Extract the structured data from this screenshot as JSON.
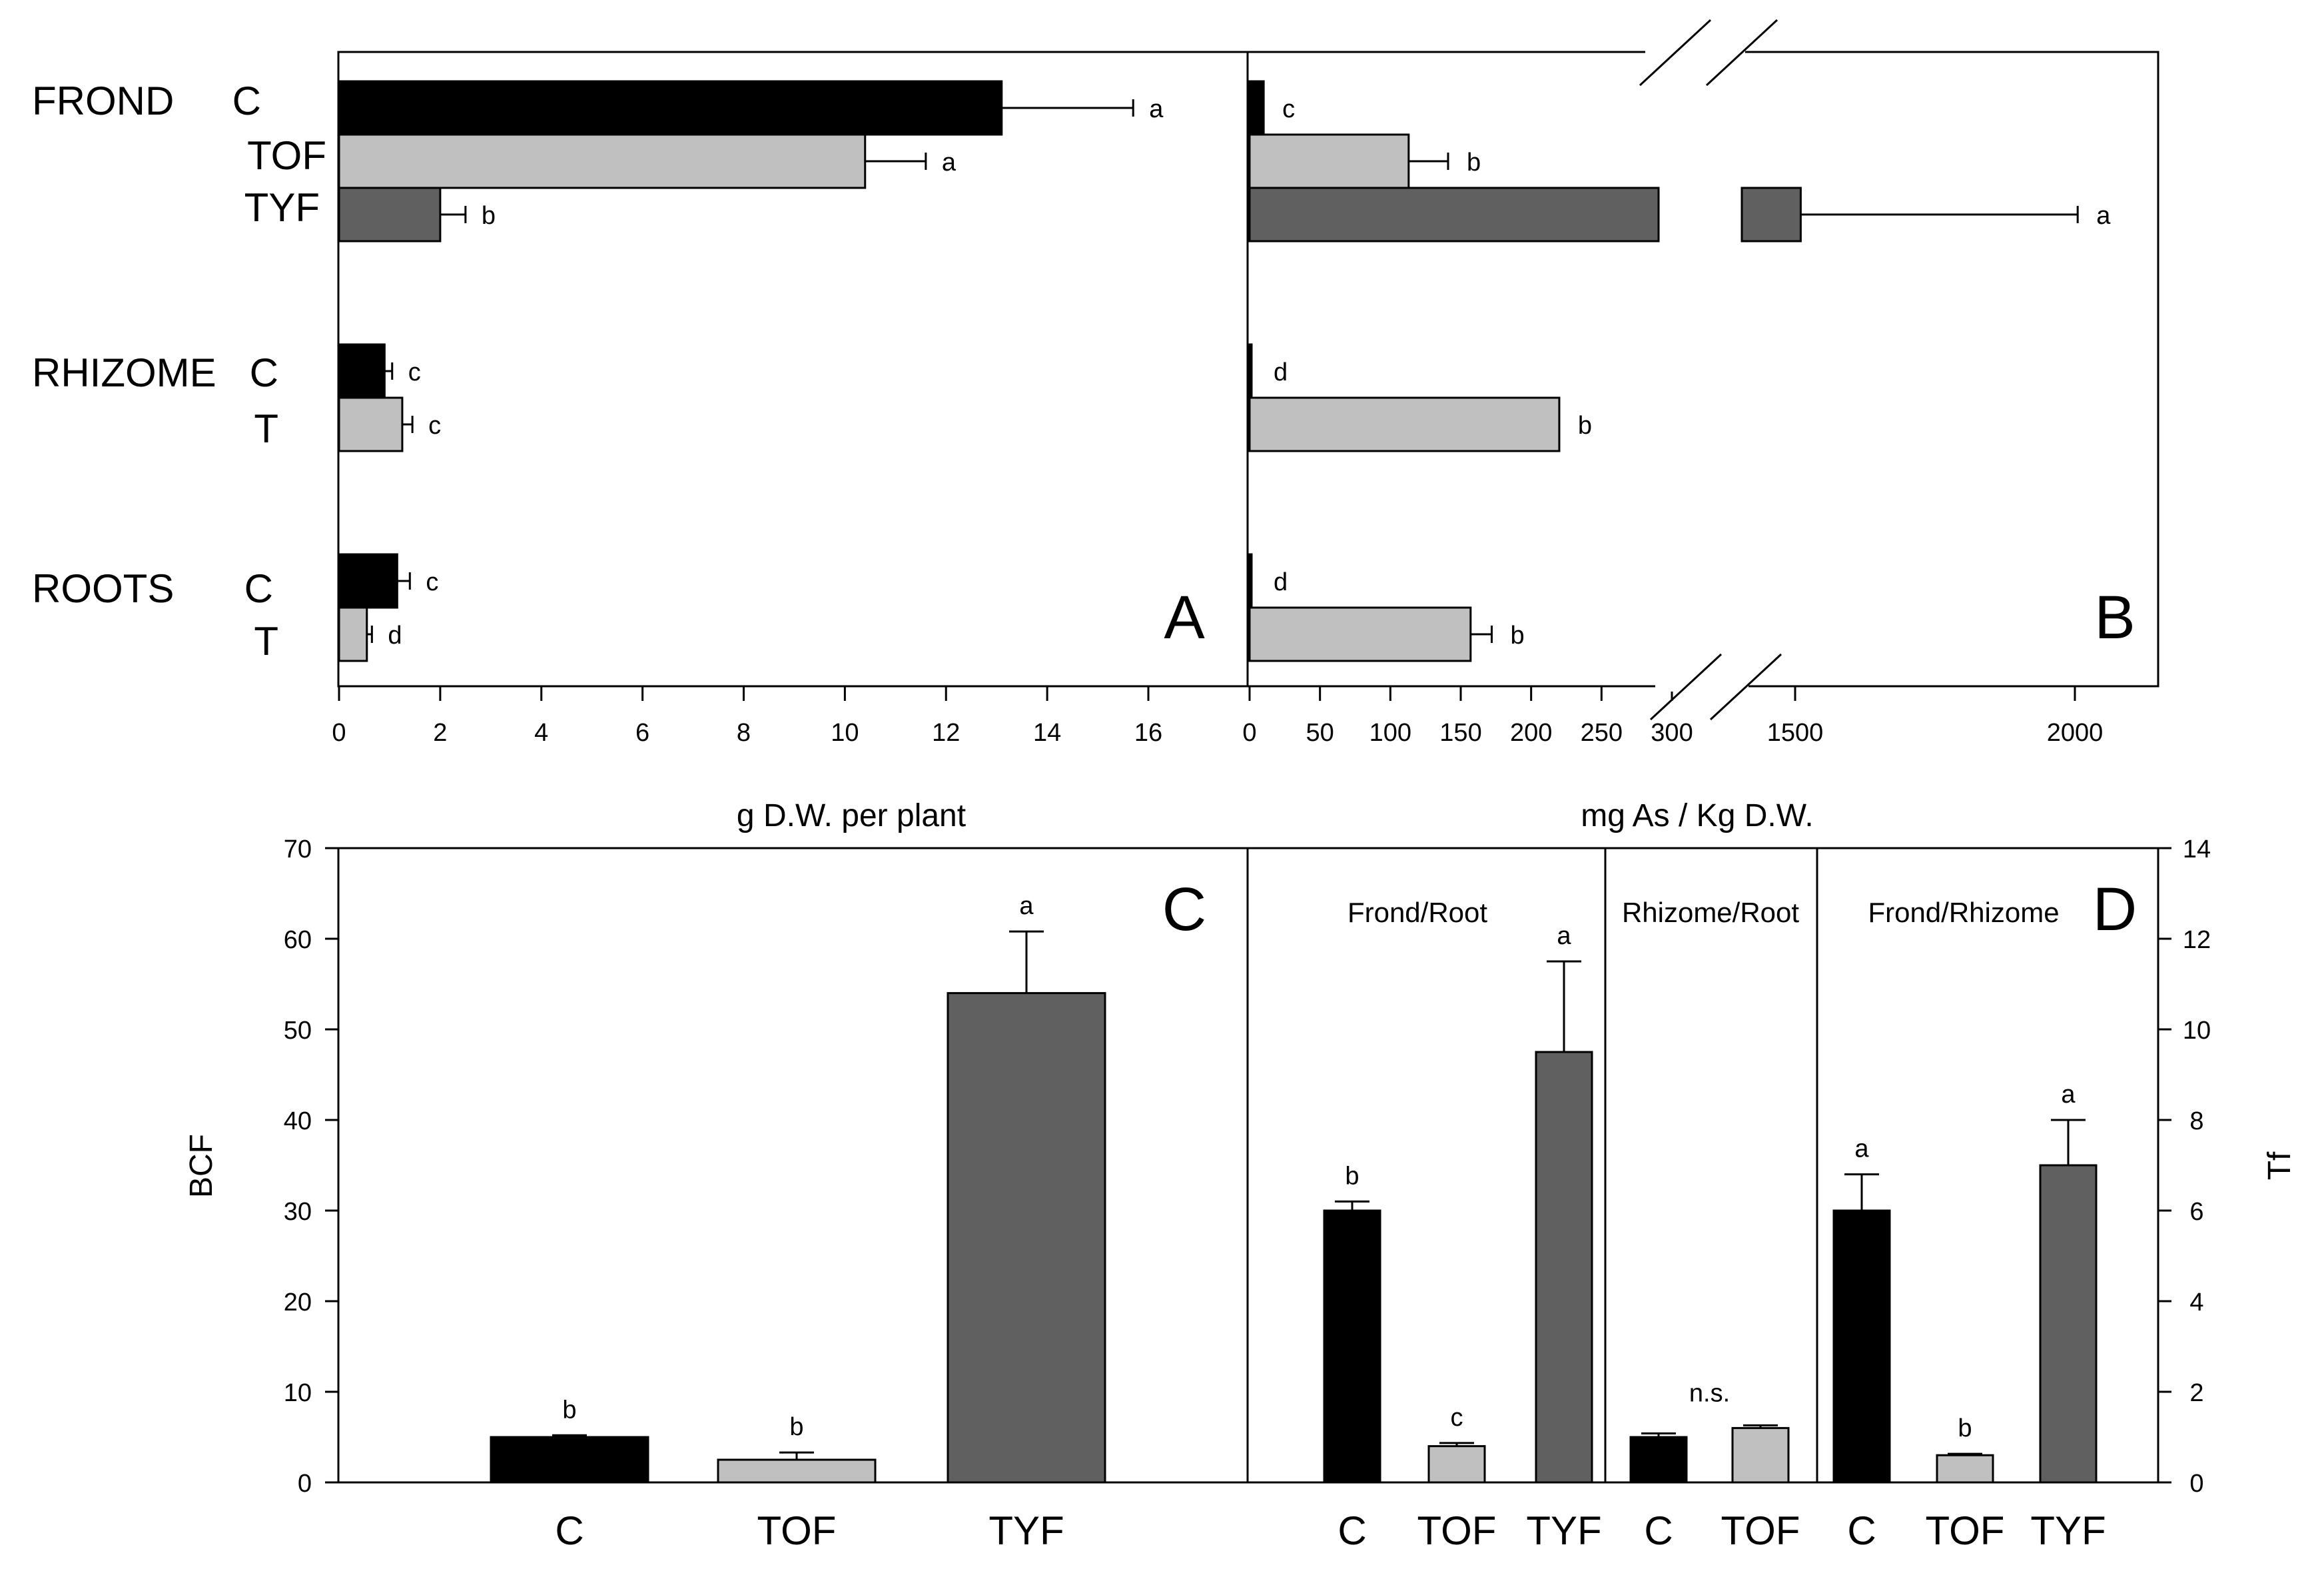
{
  "chart_data": [
    {
      "panel": "A",
      "type": "bar",
      "orientation": "horizontal",
      "xlabel": "g D.W. per plant",
      "xlim": [
        0,
        18
      ],
      "xticks": [
        "0",
        "2",
        "4",
        "6",
        "8",
        "10",
        "12",
        "14",
        "16"
      ],
      "bars": [
        {
          "group": "FROND",
          "group_label": "FROND",
          "treatment": "C",
          "value": 13.1,
          "error": 2.6,
          "sig": "a",
          "color": "#000000"
        },
        {
          "group": "FROND",
          "group_label": "",
          "treatment": "TOF",
          "value": 10.4,
          "error": 1.2,
          "sig": "a",
          "color": "#c0c0c0"
        },
        {
          "group": "FROND",
          "group_label": "",
          "treatment": "TYF",
          "value": 2.0,
          "error": 0.5,
          "sig": "b",
          "color": "#606060"
        },
        {
          "group": "RHIZOME",
          "group_label": "RHIZOME",
          "treatment": "C",
          "value": 0.9,
          "error": 0.15,
          "sig": "c",
          "color": "#000000"
        },
        {
          "group": "RHIZOME",
          "group_label": "",
          "treatment": "T",
          "value": 1.25,
          "error": 0.2,
          "sig": "c",
          "color": "#c0c0c0"
        },
        {
          "group": "ROOTS",
          "group_label": "ROOTS",
          "treatment": "C",
          "value": 1.15,
          "error": 0.25,
          "sig": "c",
          "color": "#000000"
        },
        {
          "group": "ROOTS",
          "group_label": "",
          "treatment": "T",
          "value": 0.55,
          "error": 0.1,
          "sig": "d",
          "color": "#c0c0c0"
        }
      ]
    },
    {
      "panel": "B",
      "type": "bar",
      "orientation": "horizontal",
      "xlabel": "mg As / Kg D.W.",
      "axis_break": {
        "low_segment": [
          0,
          300
        ],
        "high_segment": [
          1500,
          2000
        ]
      },
      "xticks": [
        "0",
        "50",
        "100",
        "150",
        "200",
        "250",
        "300",
        "1500",
        "2000"
      ],
      "bars": [
        {
          "group": "FROND",
          "treatment": "C",
          "value": 10,
          "error": 0,
          "sig": "c",
          "color": "#000000"
        },
        {
          "group": "FROND",
          "treatment": "TOF",
          "value": 113,
          "error": 28,
          "sig": "b",
          "color": "#c0c0c0"
        },
        {
          "group": "FROND",
          "treatment": "TYF",
          "value": 1510,
          "error": 495,
          "sig": "a",
          "color": "#606060"
        },
        {
          "group": "RHIZOME",
          "treatment": "C",
          "value": 1,
          "error": 0,
          "sig": "d",
          "color": "#000000"
        },
        {
          "group": "RHIZOME",
          "treatment": "T",
          "value": 220,
          "error": 0,
          "sig": "b",
          "color": "#c0c0c0"
        },
        {
          "group": "ROOTS",
          "treatment": "C",
          "value": 1,
          "error": 0,
          "sig": "d",
          "color": "#000000"
        },
        {
          "group": "ROOTS",
          "treatment": "T",
          "value": 157,
          "error": 15,
          "sig": "b",
          "color": "#c0c0c0"
        }
      ]
    },
    {
      "panel": "C",
      "type": "bar",
      "orientation": "vertical",
      "ylabel": "BCF",
      "ylim": [
        0,
        70
      ],
      "yticks": [
        "0",
        "10",
        "20",
        "30",
        "40",
        "50",
        "60",
        "70"
      ],
      "bars": [
        {
          "category": "C",
          "value": 5.0,
          "error": 0.2,
          "sig": "b",
          "color": "#000000"
        },
        {
          "category": "TOF",
          "value": 2.5,
          "error": 0.8,
          "sig": "b",
          "color": "#c0c0c0"
        },
        {
          "category": "TYF",
          "value": 54.0,
          "error": 6.8,
          "sig": "a",
          "color": "#606060"
        }
      ]
    },
    {
      "panel": "D",
      "type": "bar",
      "orientation": "vertical",
      "ylabel": "Tf",
      "ylim": [
        0,
        14
      ],
      "yticks": [
        "0",
        "2",
        "4",
        "6",
        "8",
        "10",
        "12",
        "14"
      ],
      "groups": [
        {
          "name": "Frond/Root",
          "bars": [
            {
              "category": "C",
              "value": 6.0,
              "error": 0.2,
              "sig": "b",
              "color": "#000000"
            },
            {
              "category": "TOF",
              "value": 0.8,
              "error": 0.07,
              "sig": "c",
              "color": "#c0c0c0"
            },
            {
              "category": "TYF",
              "value": 9.5,
              "error": 2.0,
              "sig": "a",
              "color": "#606060"
            }
          ]
        },
        {
          "name": "Rhizome/Root",
          "sig": "n.s.",
          "bars": [
            {
              "category": "C",
              "value": 1.0,
              "error": 0.08,
              "sig": "",
              "color": "#000000"
            },
            {
              "category": "TOF",
              "value": 1.2,
              "error": 0.06,
              "sig": "",
              "color": "#c0c0c0"
            }
          ]
        },
        {
          "name": "Frond/Rhizome",
          "bars": [
            {
              "category": "C",
              "value": 6.0,
              "error": 0.8,
              "sig": "a",
              "color": "#000000"
            },
            {
              "category": "TOF",
              "value": 0.6,
              "error": 0.03,
              "sig": "b",
              "color": "#c0c0c0"
            },
            {
              "category": "TYF",
              "value": 7.0,
              "error": 1.0,
              "sig": "a",
              "color": "#606060"
            }
          ]
        }
      ]
    }
  ]
}
